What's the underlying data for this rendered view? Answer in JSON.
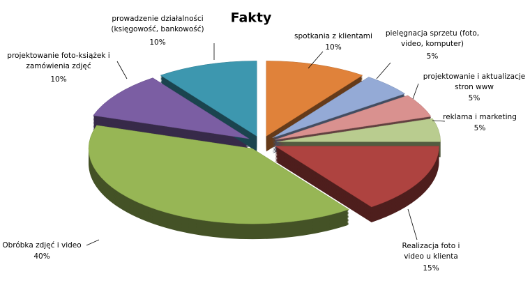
{
  "chart_data": {
    "type": "pie",
    "title": "Fakty",
    "categories": [
      "spotkania z klientami",
      "pielęgnacja sprzetu (foto, video, komputer)",
      "projektowanie i aktualizacje stron www",
      "reklama i marketing",
      "Realizacja foto i video u klienta",
      "Obróbka zdjęć i video",
      "projektowanie foto-książek i zamówienia zdjęć",
      "prowadzenie działalności (księgowość, bankowość)"
    ],
    "values": [
      10,
      5,
      5,
      5,
      15,
      40,
      10,
      10
    ],
    "value_labels": [
      "10%",
      "5%",
      "5%",
      "5%",
      "15%",
      "40%",
      "10%",
      "10%"
    ],
    "colors": [
      "#e0823a",
      "#94aad6",
      "#d9918f",
      "#b9cc8f",
      "#ae4340",
      "#97b655",
      "#7b5ea3",
      "#3d97af"
    ]
  }
}
